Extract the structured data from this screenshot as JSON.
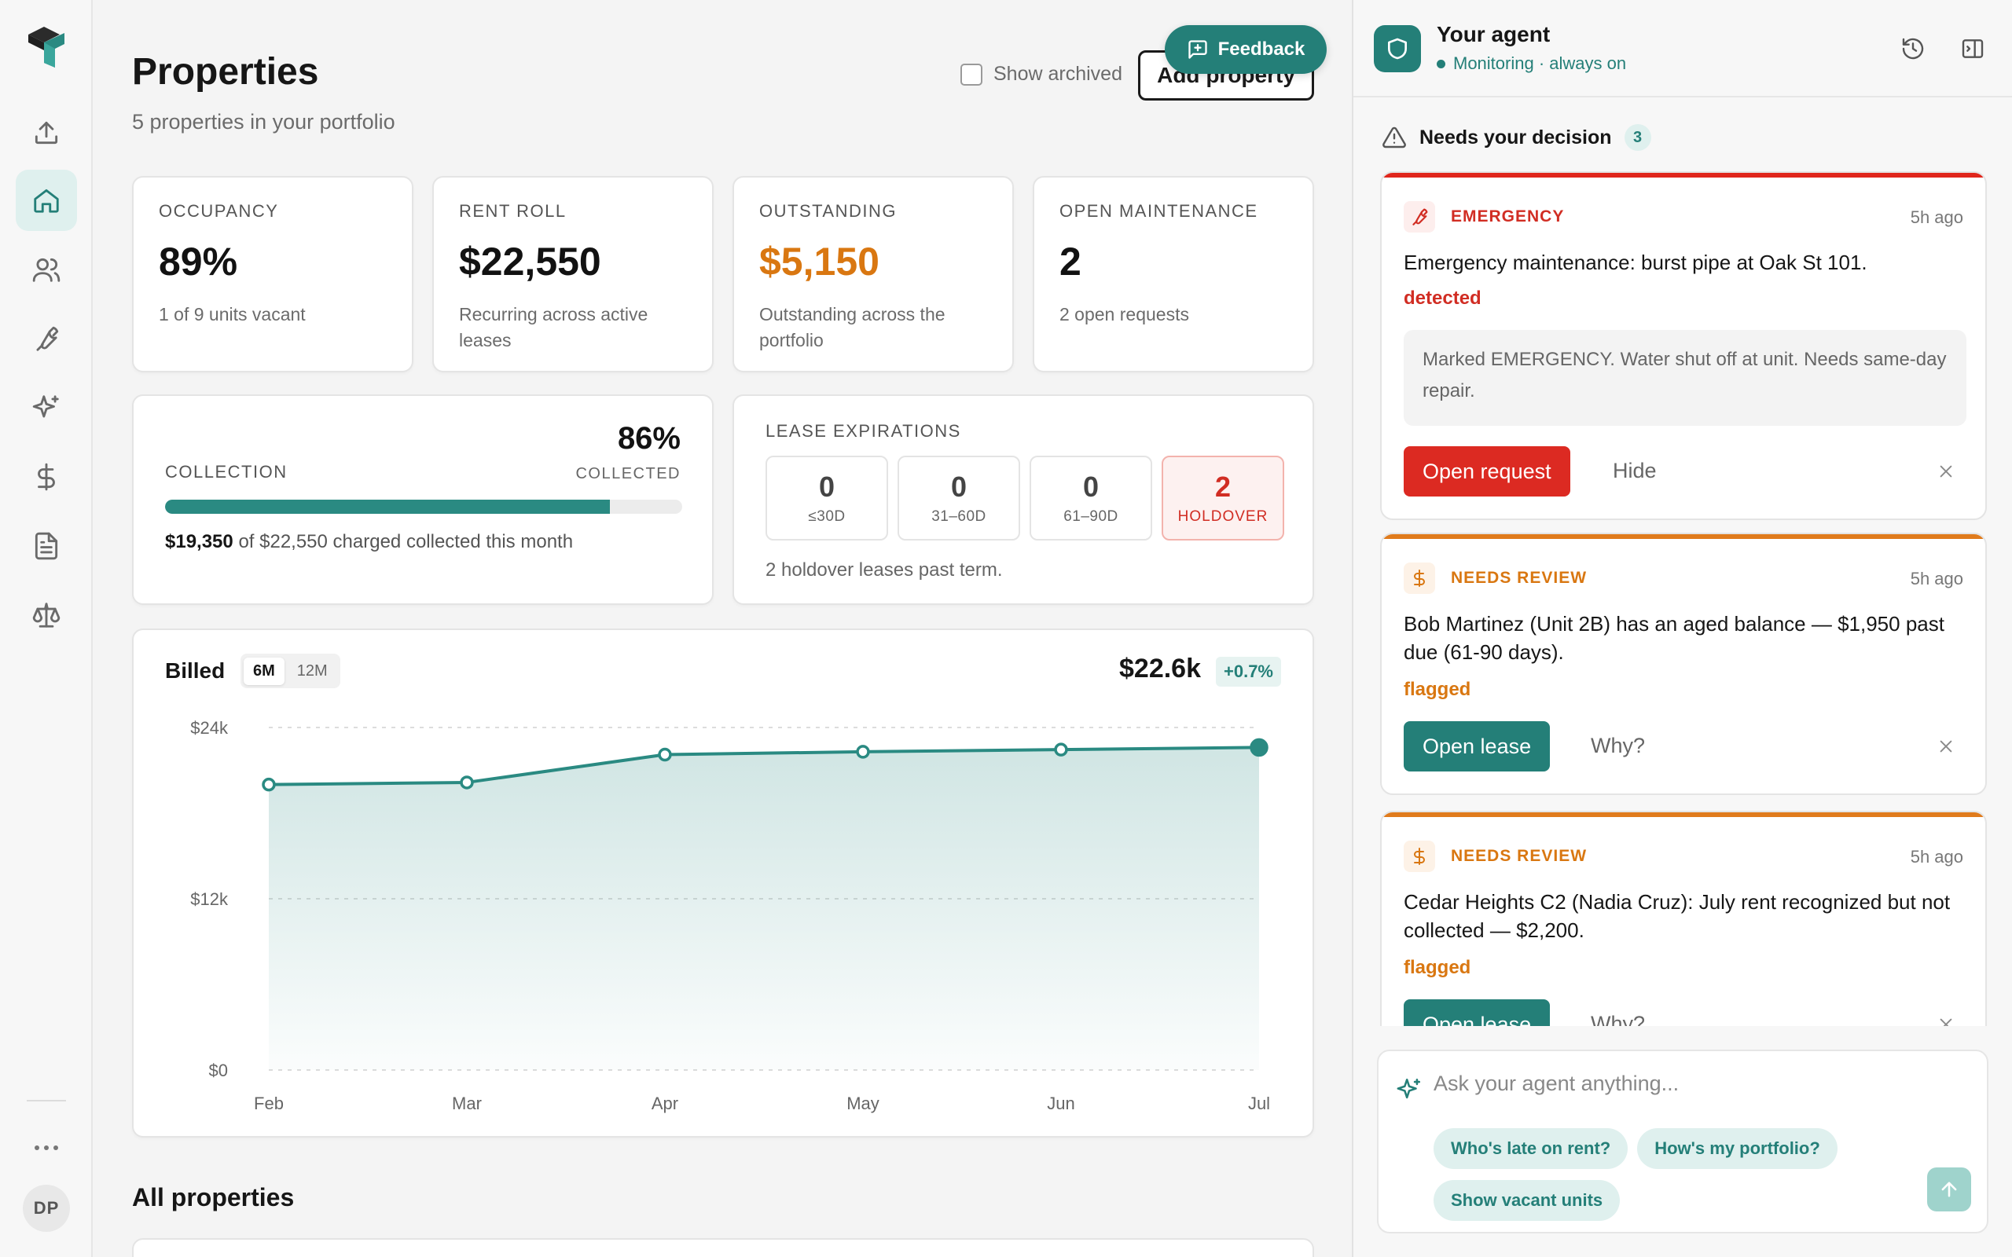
{
  "page": {
    "title": "Properties",
    "subtitle": "5 properties in your portfolio",
    "show_archived_label": "Show archived",
    "add_property_label": "Add property",
    "feedback_label": "Feedback"
  },
  "nav": {
    "items": [
      {
        "name": "upload",
        "icon": "upload-icon"
      },
      {
        "name": "home",
        "icon": "home-icon",
        "active": true
      },
      {
        "name": "people",
        "icon": "users-icon"
      },
      {
        "name": "maintenance",
        "icon": "wrench-icon"
      },
      {
        "name": "ai",
        "icon": "sparkles-icon"
      },
      {
        "name": "finance",
        "icon": "dollar-icon"
      },
      {
        "name": "documents",
        "icon": "document-icon"
      },
      {
        "name": "legal",
        "icon": "scale-icon"
      }
    ],
    "avatar_initials": "DP"
  },
  "stats": [
    {
      "label": "OCCUPANCY",
      "value": "89%",
      "desc": "1 of 9 units vacant",
      "accent": "#121212"
    },
    {
      "label": "RENT ROLL",
      "value": "$22,550",
      "desc": "Recurring across active leases",
      "accent": "#121212"
    },
    {
      "label": "OUTSTANDING",
      "value": "$5,150",
      "desc": "Outstanding across the portfolio",
      "accent": "#d97711"
    },
    {
      "label": "OPEN MAINTENANCE",
      "value": "2",
      "desc": "2 open requests",
      "accent": "#121212"
    }
  ],
  "collection": {
    "label": "COLLECTION",
    "percent": "86%",
    "percent_label": "COLLECTED",
    "fraction": 0.86,
    "collected": "$19,350",
    "rest": "of $22,550 charged collected this month"
  },
  "lease_expirations": {
    "label": "LEASE EXPIRATIONS",
    "buckets": [
      {
        "count": "0",
        "label": "≤30D"
      },
      {
        "count": "0",
        "label": "31–60D"
      },
      {
        "count": "0",
        "label": "61–90D"
      },
      {
        "count": "2",
        "label": "HOLDOVER",
        "highlight": true
      }
    ],
    "note": "2 holdover leases past term."
  },
  "billed": {
    "title": "Billed",
    "ranges": [
      "6M",
      "12M"
    ],
    "selected_range": "6M",
    "total": "$22.6k",
    "change": "+0.7%"
  },
  "chart_data": {
    "type": "area",
    "title": "Billed",
    "x": [
      "Feb",
      "Mar",
      "Apr",
      "May",
      "Jun",
      "Jul"
    ],
    "series": [
      {
        "values": [
          20000,
          20150,
          22100,
          22300,
          22450,
          22600
        ]
      }
    ],
    "y_ticks": [
      "$0",
      "$12k",
      "$24k"
    ],
    "ylim": [
      0,
      24000
    ],
    "grid": true,
    "color": "#2a8a82"
  },
  "all_properties_title": "All properties",
  "agent": {
    "name": "Your agent",
    "status": "Monitoring · always on",
    "section_title": "Needs your decision",
    "decision_count": "3",
    "alerts": [
      {
        "tag": "EMERGENCY",
        "icon": "wrench-icon",
        "color": "#d12d23",
        "time": "5h ago",
        "message": "Emergency maintenance: burst pipe at Oak St 101.",
        "state": "detected",
        "quote": "Marked EMERGENCY. Water shut off at unit. Needs same-day repair.",
        "primary": "Open request",
        "secondary": "Hide"
      },
      {
        "tag": "NEEDS REVIEW",
        "icon": "dollar-icon",
        "color": "#d97711",
        "time": "5h ago",
        "message": "Bob Martinez (Unit 2B) has an aged balance — $1,950 past due (61-90 days).",
        "state": "flagged",
        "primary": "Open lease",
        "secondary": "Why?"
      },
      {
        "tag": "NEEDS REVIEW",
        "icon": "dollar-icon",
        "color": "#d97711",
        "time": "5h ago",
        "message": "Cedar Heights C2 (Nadia Cruz): July rent recognized but not collected — $2,200.",
        "state": "flagged",
        "primary": "Open lease",
        "secondary": "Why?"
      }
    ],
    "composer_placeholder": "Ask your agent anything...",
    "suggestions": [
      "Who's late on rent?",
      "How's my portfolio?",
      "Show vacant units"
    ]
  }
}
